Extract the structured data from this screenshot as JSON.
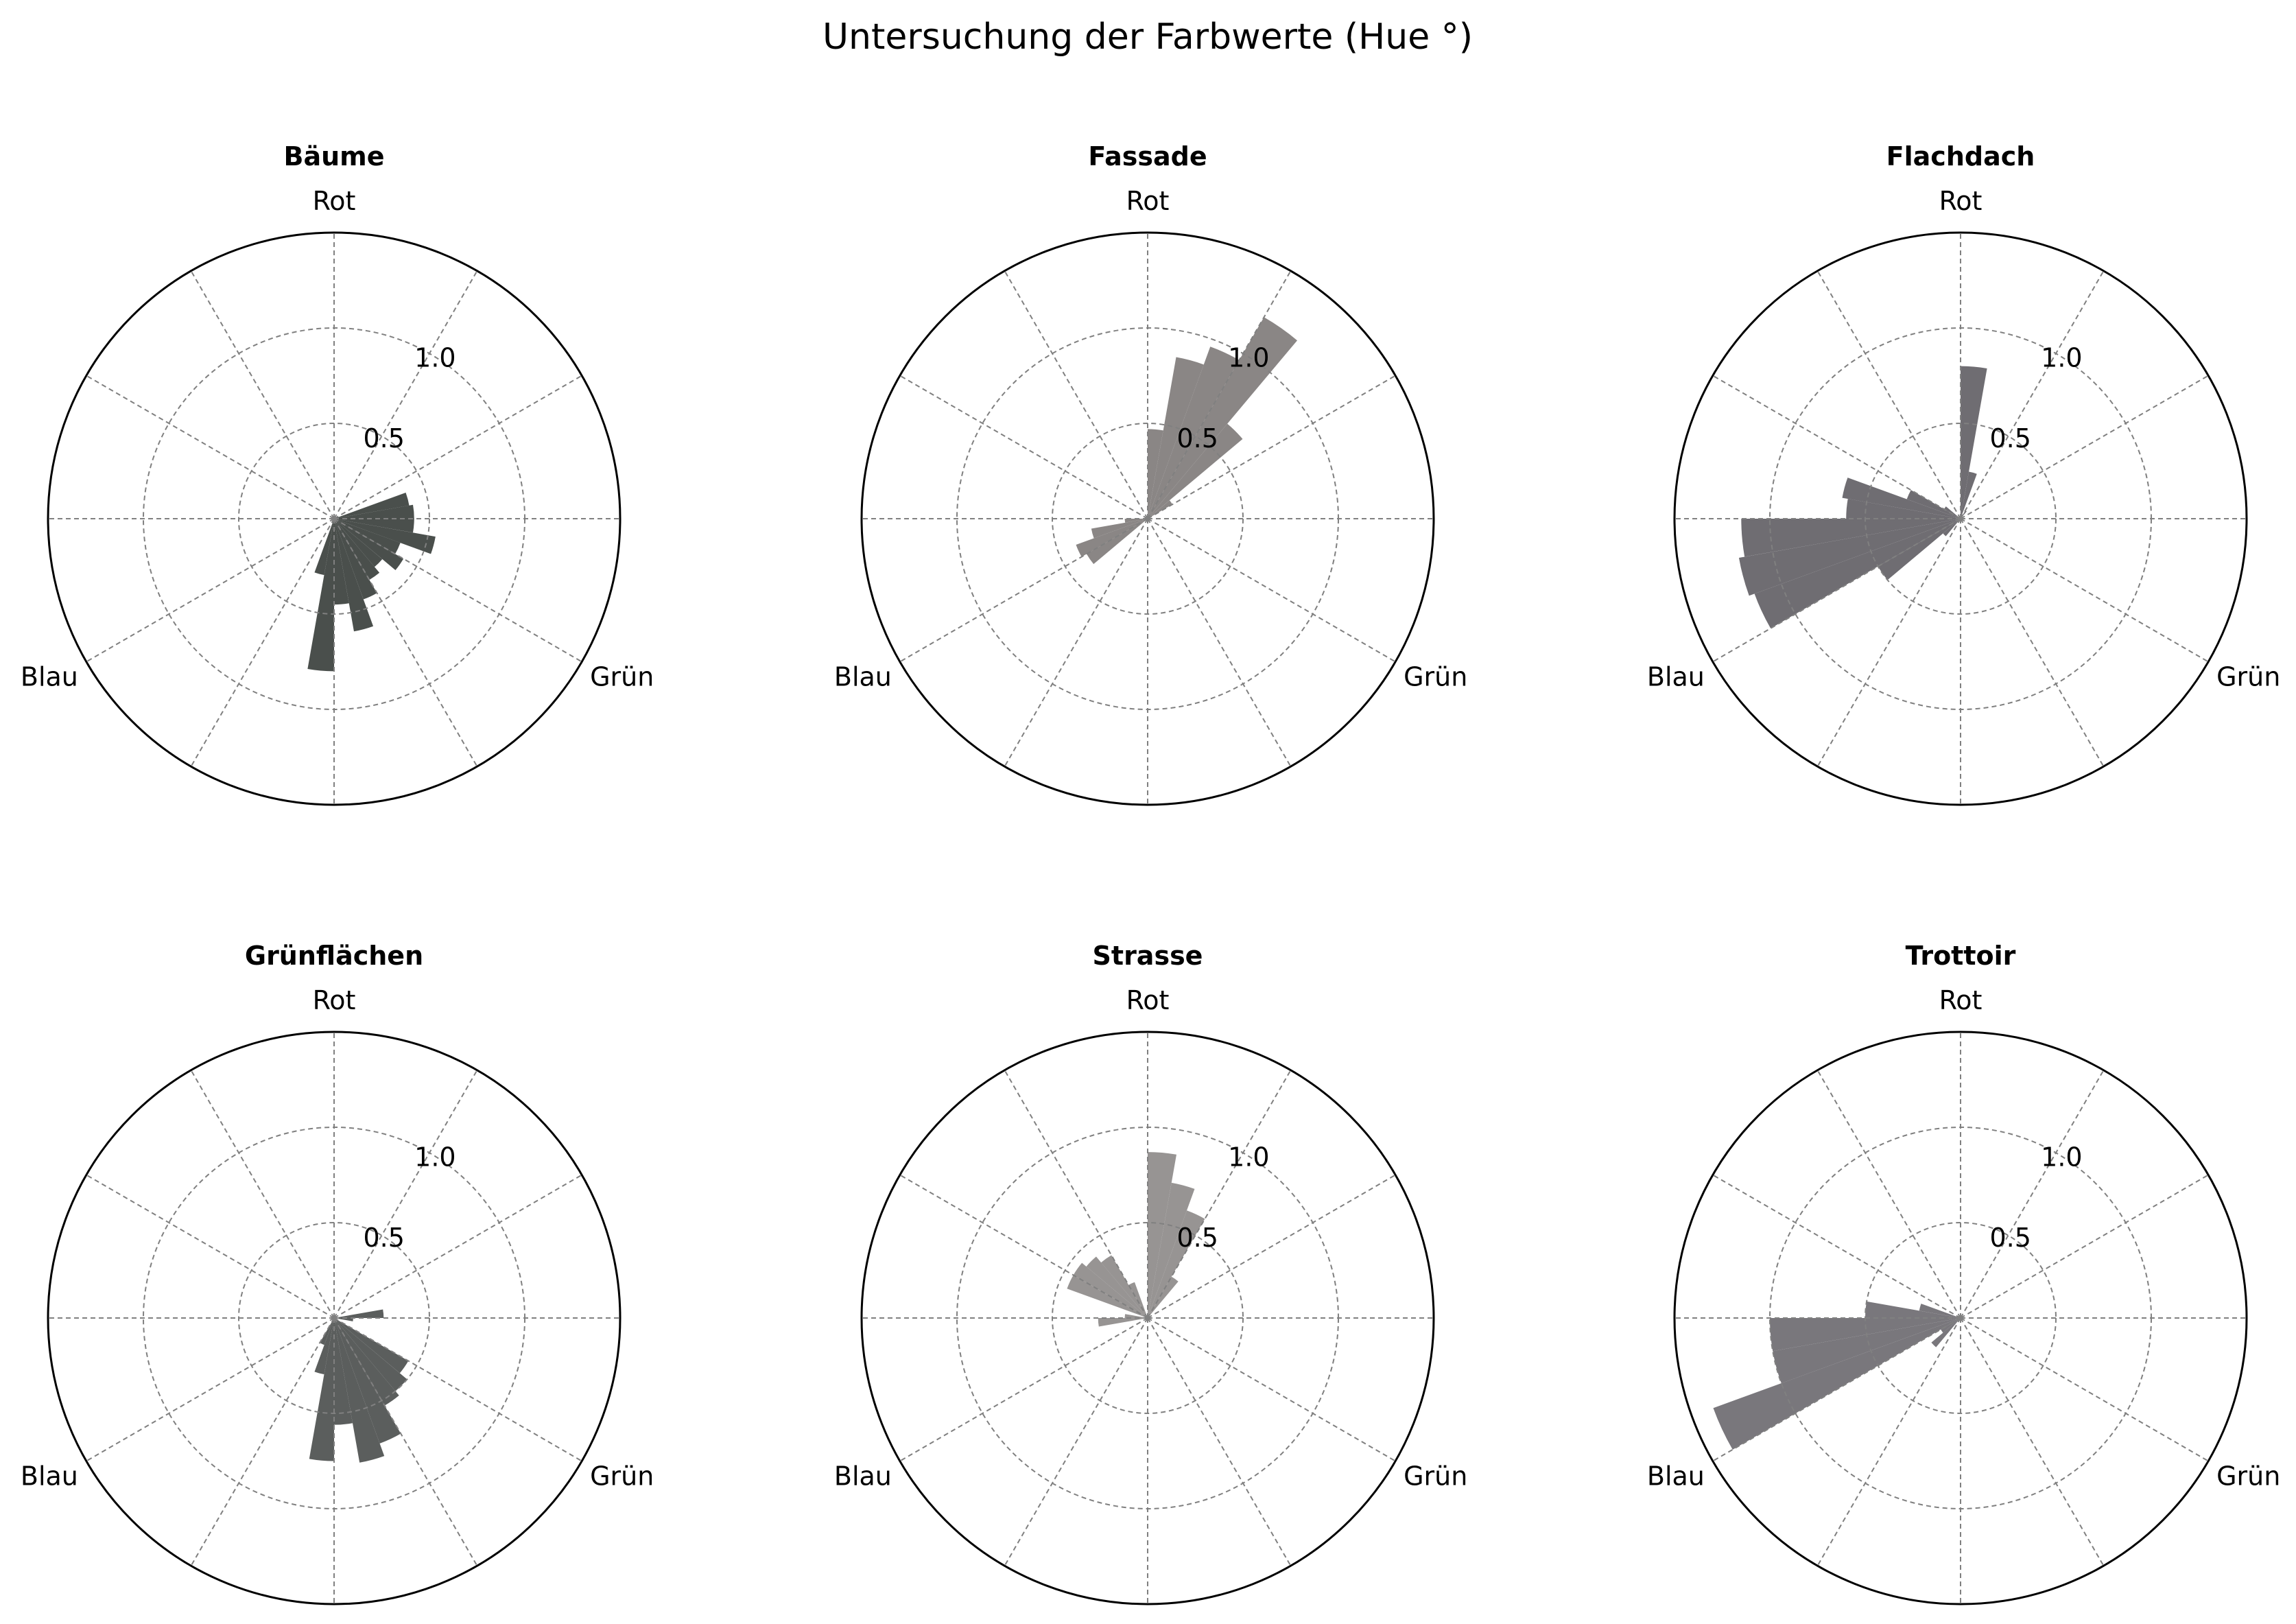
{
  "figure": {
    "title": "Untersuchung der Farbwerte (Hue °)"
  },
  "chart_data": [
    {
      "type": "polar_bar",
      "title": "Bäume",
      "direction_labels": {
        "top": "Rot",
        "lower_right": "Grün",
        "lower_left": "Blau"
      },
      "r_ticks": [
        "0.5",
        "1.0"
      ],
      "rlim": [
        0,
        1.5
      ],
      "theta_unit": "hue_degrees_clockwise_from_top",
      "bar_width_deg": 10,
      "color": "#4a4f4c",
      "bars": [
        {
          "hue": 75,
          "r": 0.4
        },
        {
          "hue": 85,
          "r": 0.42
        },
        {
          "hue": 95,
          "r": 0.42
        },
        {
          "hue": 105,
          "r": 0.54
        },
        {
          "hue": 115,
          "r": 0.37
        },
        {
          "hue": 125,
          "r": 0.42
        },
        {
          "hue": 135,
          "r": 0.33
        },
        {
          "hue": 145,
          "r": 0.37
        },
        {
          "hue": 155,
          "r": 0.45
        },
        {
          "hue": 165,
          "r": 0.6
        },
        {
          "hue": 175,
          "r": 0.45
        },
        {
          "hue": 185,
          "r": 0.8
        },
        {
          "hue": 195,
          "r": 0.3
        }
      ]
    },
    {
      "type": "polar_bar",
      "title": "Fassade",
      "direction_labels": {
        "top": "Rot",
        "lower_right": "Grün",
        "lower_left": "Blau"
      },
      "r_ticks": [
        "0.5",
        "1.0"
      ],
      "rlim": [
        0,
        1.5
      ],
      "theta_unit": "hue_degrees_clockwise_from_top",
      "bar_width_deg": 10,
      "color": "#8a8685",
      "bars": [
        {
          "hue": 5,
          "r": 0.47
        },
        {
          "hue": 15,
          "r": 0.86
        },
        {
          "hue": 25,
          "r": 0.96
        },
        {
          "hue": 35,
          "r": 1.22
        },
        {
          "hue": 45,
          "r": 0.65
        },
        {
          "hue": 55,
          "r": 0.15
        },
        {
          "hue": 235,
          "r": 0.37
        },
        {
          "hue": 245,
          "r": 0.4
        },
        {
          "hue": 255,
          "r": 0.3
        },
        {
          "hue": 265,
          "r": 0.12
        }
      ]
    },
    {
      "type": "polar_bar",
      "title": "Flachdach",
      "direction_labels": {
        "top": "Rot",
        "lower_right": "Grün",
        "lower_left": "Blau"
      },
      "r_ticks": [
        "0.5",
        "1.0"
      ],
      "rlim": [
        0,
        1.5
      ],
      "theta_unit": "hue_degrees_clockwise_from_top",
      "bar_width_deg": 10,
      "color": "#6f6d72",
      "bars": [
        {
          "hue": 5,
          "r": 0.8
        },
        {
          "hue": 15,
          "r": 0.25
        },
        {
          "hue": 35,
          "r": 0.05
        },
        {
          "hue": 225,
          "r": 0.12
        },
        {
          "hue": 235,
          "r": 0.5
        },
        {
          "hue": 245,
          "r": 1.15
        },
        {
          "hue": 255,
          "r": 1.18
        },
        {
          "hue": 265,
          "r": 1.15
        },
        {
          "hue": 275,
          "r": 0.6
        },
        {
          "hue": 285,
          "r": 0.63
        },
        {
          "hue": 295,
          "r": 0.3
        },
        {
          "hue": 305,
          "r": 0.1
        }
      ]
    },
    {
      "type": "polar_bar",
      "title": "Grünflächen",
      "direction_labels": {
        "top": "Rot",
        "lower_right": "Grün",
        "lower_left": "Blau"
      },
      "r_ticks": [
        "0.5",
        "1.0"
      ],
      "rlim": [
        0,
        1.5
      ],
      "theta_unit": "hue_degrees_clockwise_from_top",
      "bar_width_deg": 10,
      "color": "#5b5e5d",
      "bars": [
        {
          "hue": 85,
          "r": 0.26
        },
        {
          "hue": 95,
          "r": 0.1
        },
        {
          "hue": 125,
          "r": 0.45
        },
        {
          "hue": 135,
          "r": 0.5
        },
        {
          "hue": 145,
          "r": 0.53
        },
        {
          "hue": 155,
          "r": 0.7
        },
        {
          "hue": 165,
          "r": 0.77
        },
        {
          "hue": 175,
          "r": 0.56
        },
        {
          "hue": 185,
          "r": 0.75
        },
        {
          "hue": 195,
          "r": 0.3
        },
        {
          "hue": 205,
          "r": 0.15
        }
      ]
    },
    {
      "type": "polar_bar",
      "title": "Strasse",
      "direction_labels": {
        "top": "Rot",
        "lower_right": "Grün",
        "lower_left": "Blau"
      },
      "r_ticks": [
        "0.5",
        "1.0"
      ],
      "rlim": [
        0,
        1.5
      ],
      "theta_unit": "hue_degrees_clockwise_from_top",
      "bar_width_deg": 10,
      "color": "#979493",
      "bars": [
        {
          "hue": 5,
          "r": 0.87
        },
        {
          "hue": 15,
          "r": 0.72
        },
        {
          "hue": 25,
          "r": 0.6
        },
        {
          "hue": 35,
          "r": 0.25
        },
        {
          "hue": 265,
          "r": 0.26
        },
        {
          "hue": 275,
          "r": 0.12
        },
        {
          "hue": 295,
          "r": 0.45
        },
        {
          "hue": 305,
          "r": 0.45
        },
        {
          "hue": 315,
          "r": 0.42
        },
        {
          "hue": 325,
          "r": 0.38
        },
        {
          "hue": 335,
          "r": 0.2
        }
      ]
    },
    {
      "type": "polar_bar",
      "title": "Trottoir",
      "direction_labels": {
        "top": "Rot",
        "lower_right": "Grün",
        "lower_left": "Blau"
      },
      "r_ticks": [
        "0.5",
        "1.0"
      ],
      "rlim": [
        0,
        1.5
      ],
      "theta_unit": "hue_degrees_clockwise_from_top",
      "bar_width_deg": 10,
      "color": "#79777c",
      "bars": [
        {
          "hue": 225,
          "r": 0.2
        },
        {
          "hue": 235,
          "r": 0.12
        },
        {
          "hue": 245,
          "r": 1.38
        },
        {
          "hue": 255,
          "r": 1.0
        },
        {
          "hue": 265,
          "r": 1.0
        },
        {
          "hue": 275,
          "r": 0.5
        },
        {
          "hue": 285,
          "r": 0.22
        }
      ]
    }
  ]
}
